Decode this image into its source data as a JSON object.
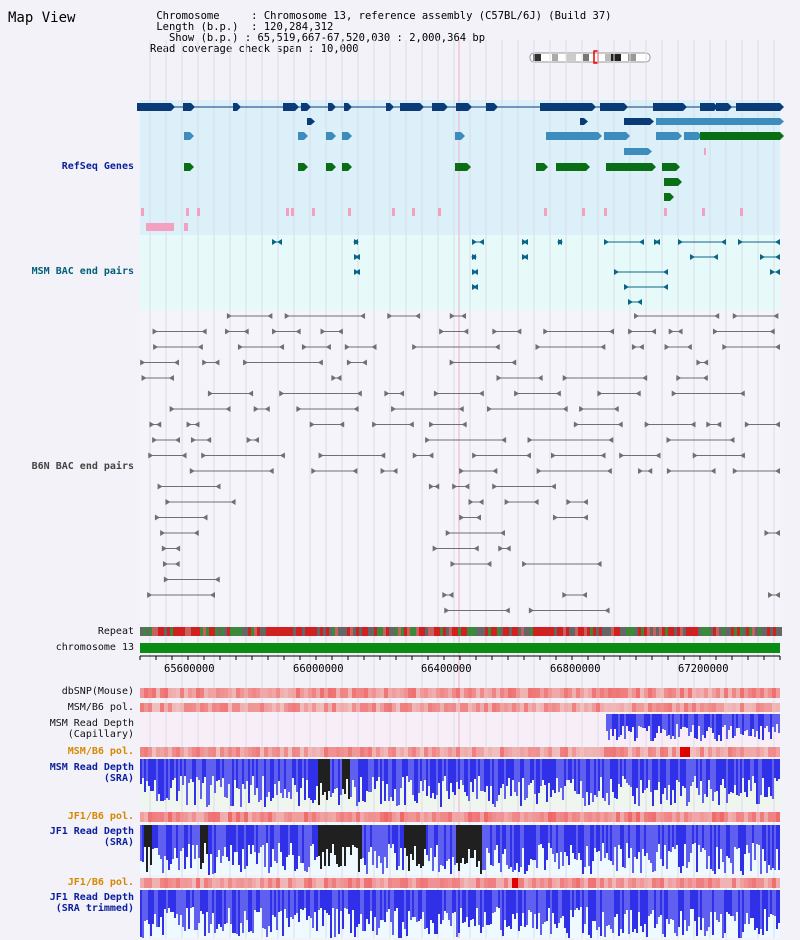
{
  "header": {
    "title": "Map View",
    "chromosome_label": "Chromosome",
    "chromosome_value": "Chromosome 13, reference assembly (C57BL/6J) (Build 37)",
    "length_label": "Length (b.p.)",
    "length_value": "120,284,312",
    "show_label": "Show (b.p.)",
    "show_value": "65,519,667-67,520,030 : 2,000,364 bp",
    "coverage_label": "Read coverage check span",
    "coverage_value": "10,000"
  },
  "tracks": {
    "refseq": "RefSeq Genes",
    "msm_bac": "MSM BAC end pairs",
    "b6n_bac": "B6N BAC end pairs",
    "repeat": "Repeat",
    "chromosome": "chromosome 13",
    "dbsnp": "dbSNP(Mouse)",
    "msm_b6_pol_1": "MSM/B6 pol.",
    "msm_depth_cap_1": "MSM Read Depth",
    "msm_depth_cap_2": "(Capillary)",
    "msm_b6_pol_2": "MSM/B6 pol.",
    "msm_depth_sra_1": "MSM Read Depth",
    "msm_depth_sra_2": "(SRA)",
    "jf1_b6_pol_1": "JF1/B6 pol.",
    "jf1_depth_sra_1": "JF1 Read Depth",
    "jf1_depth_sra_2": "(SRA)",
    "jf1_b6_pol_2": "JF1/B6 pol.",
    "jf1_depth_trim_1": "JF1 Read Depth",
    "jf1_depth_trim_2": "(SRA trimmed)"
  },
  "axis": {
    "ticks": [
      "65600000",
      "66000000",
      "66400000",
      "66800000",
      "67200000"
    ]
  },
  "colors": {
    "refseq_bg": "#dcf0fa",
    "bac_bg": "#e6fafa",
    "gene_dark": "#0a3a78",
    "gene_mid": "#3c8cbe",
    "gene_green": "#0a6e14",
    "chromosome_bar": "#0a8c14",
    "depth_blue": "#2020e6"
  }
}
